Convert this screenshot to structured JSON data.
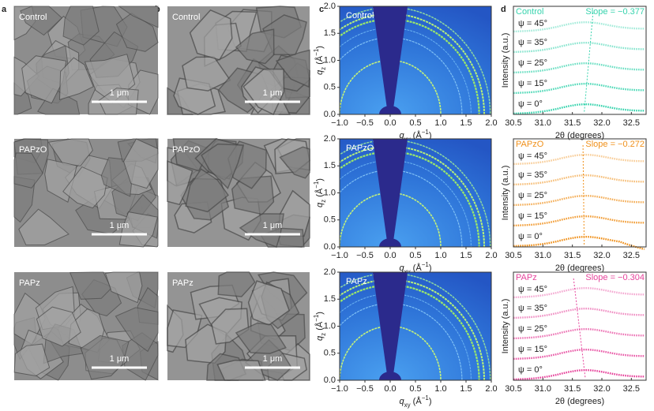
{
  "panel_labels": [
    "a",
    "b",
    "c",
    "d"
  ],
  "scale_bar": "1 μm",
  "rows": [
    {
      "name": "Control",
      "color": "#36d3ad",
      "slope": "Slope = −0.377"
    },
    {
      "name": "PAPzO",
      "color": "#f0901a",
      "slope": "Slope = −0.272"
    },
    {
      "name": "PAPz",
      "color": "#e6439b",
      "slope": "Slope = −0.304"
    }
  ],
  "giwaxs": {
    "x_label": {
      "main": "q",
      "sub": "xy",
      "unit": " (Å",
      "sup": "−1",
      "close": ")"
    },
    "y_label": {
      "main": "q",
      "sub": "z",
      "unit": " (Å",
      "sup": "−1",
      "close": ")"
    },
    "xlim": [
      -1,
      2
    ],
    "ylim": [
      0,
      2
    ],
    "xticks": [
      {
        "value": -1,
        "label": "−1.0"
      },
      {
        "value": -0.5,
        "label": "−0.5"
      },
      {
        "value": 0,
        "label": "0.0"
      },
      {
        "value": 0.5,
        "label": "0.5"
      },
      {
        "value": 1,
        "label": "1.0"
      },
      {
        "value": 1.5,
        "label": "1.5"
      },
      {
        "value": 2,
        "label": "2.0"
      }
    ],
    "yticks": [
      {
        "value": 0,
        "label": "0.0"
      },
      {
        "value": 0.5,
        "label": "0.5"
      },
      {
        "value": 1,
        "label": "1.0"
      },
      {
        "value": 1.5,
        "label": "1.5"
      },
      {
        "value": 2,
        "label": "2.0"
      }
    ]
  },
  "xrd": {
    "x_label": "2θ (degrees)",
    "y_label": "Intensity (a.u.)",
    "xlim": [
      30.5,
      32.75
    ],
    "xticks": [
      30.5,
      {
        "value": 31,
        "label": "31.0"
      },
      31.5,
      {
        "value": 32,
        "label": "32.0"
      },
      32.5
    ],
    "psi_labels": [
      "ψ = 45°",
      "ψ = 35°",
      "ψ = 25°",
      "ψ = 15°",
      "ψ = 0°"
    ]
  }
}
